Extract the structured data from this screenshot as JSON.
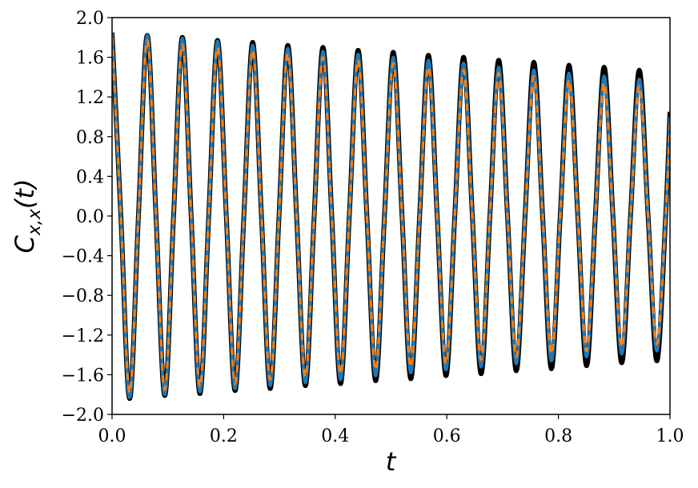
{
  "chart_data": {
    "type": "line",
    "xlabel": "t",
    "ylabel": {
      "base": "C",
      "sub": "x,x",
      "rest": "(t)"
    },
    "x": [
      0,
      0.01575,
      0.0315,
      0.04725,
      0.063,
      0.07875,
      0.0945,
      0.11025,
      0.126,
      0.14175,
      0.1575,
      0.17325,
      0.189,
      0.20475,
      0.2205,
      0.23625,
      0.252,
      0.26775,
      0.2835,
      0.29925,
      0.315,
      0.33075,
      0.3465,
      0.36225,
      0.378,
      0.39375,
      0.4095,
      0.42525,
      0.441,
      0.45675,
      0.4725,
      0.48825,
      0.504,
      0.51975,
      0.5355,
      0.55125,
      0.567,
      0.58275,
      0.5985,
      0.61425,
      0.63,
      0.64575,
      0.6615,
      0.67725,
      0.693,
      0.70875,
      0.7245,
      0.74025,
      0.756,
      0.77175,
      0.7875,
      0.80325,
      0.819,
      0.83475,
      0.8505,
      0.86625,
      0.882,
      0.89775,
      0.9135,
      0.92925,
      0.945,
      0.96075,
      0.9765,
      0.99225,
      1.0
    ],
    "series": [
      {
        "color": "#000000",
        "width": 6,
        "dashed": false,
        "values": [
          1.85,
          0,
          -1.84,
          0,
          1.82,
          0,
          -1.81,
          0,
          1.8,
          0,
          -1.79,
          0,
          1.77,
          0,
          -1.76,
          0,
          1.75,
          0,
          -1.74,
          0,
          1.72,
          0,
          -1.71,
          0,
          1.7,
          0,
          -1.69,
          0,
          1.67,
          0,
          -1.66,
          0,
          1.65,
          0,
          -1.64,
          0,
          1.62,
          0,
          -1.61,
          0,
          1.6,
          0,
          -1.59,
          0,
          1.57,
          0,
          -1.56,
          0,
          1.55,
          0,
          -1.54,
          0,
          1.52,
          0,
          -1.51,
          0,
          1.5,
          0,
          -1.48,
          0,
          1.47,
          0,
          -1.46,
          0,
          1.05
        ]
      },
      {
        "color": "#1f77b4",
        "width": 4,
        "dashed": false,
        "values": [
          1.85,
          0,
          -1.83,
          0,
          1.82,
          0,
          -1.8,
          0,
          1.79,
          0,
          -1.77,
          0,
          1.76,
          0,
          -1.74,
          0,
          1.72,
          0,
          -1.71,
          0,
          1.69,
          0,
          -1.68,
          0,
          1.66,
          0,
          -1.65,
          0,
          1.63,
          0,
          -1.61,
          0,
          1.6,
          0,
          -1.58,
          0,
          1.57,
          0,
          -1.55,
          0,
          1.54,
          0,
          -1.52,
          0,
          1.5,
          0,
          -1.49,
          0,
          1.47,
          0,
          -1.46,
          0,
          1.44,
          0,
          -1.42,
          0,
          1.41,
          0,
          -1.39,
          0,
          1.38,
          0,
          -1.36,
          0,
          1.0
        ]
      },
      {
        "color": "#ff7f0e",
        "width": 3,
        "dashed": true,
        "values": [
          1.8,
          0,
          -1.78,
          0,
          1.77,
          0,
          -1.75,
          0,
          1.73,
          0,
          -1.72,
          0,
          1.7,
          0,
          -1.69,
          0,
          1.67,
          0,
          -1.65,
          0,
          1.64,
          0,
          -1.62,
          0,
          1.6,
          0,
          -1.59,
          0,
          1.57,
          0,
          -1.55,
          0,
          1.54,
          0,
          -1.52,
          0,
          1.5,
          0,
          -1.49,
          0,
          1.47,
          0,
          -1.45,
          0,
          1.44,
          0,
          -1.42,
          0,
          1.41,
          0,
          -1.39,
          0,
          1.37,
          0,
          -1.36,
          0,
          1.34,
          0,
          -1.32,
          0,
          1.31,
          0,
          -1.29,
          0,
          0.95
        ]
      }
    ],
    "xlim": [
      0,
      1.0
    ],
    "ylim": [
      -2.0,
      2.0
    ],
    "xticks": [
      {
        "value": 0,
        "label": "0.0"
      },
      {
        "value": 0.2,
        "label": "0.2"
      },
      {
        "value": 0.4,
        "label": "0.4"
      },
      {
        "value": 0.6,
        "label": "0.6"
      },
      {
        "value": 0.8,
        "label": "0.8"
      },
      {
        "value": 1.0,
        "label": "1.0"
      }
    ],
    "yticks": [
      {
        "value": -2.0,
        "label": "−2.0"
      },
      {
        "value": -1.6,
        "label": "−1.6"
      },
      {
        "value": -1.2,
        "label": "−1.2"
      },
      {
        "value": -0.8,
        "label": "−0.8"
      },
      {
        "value": -0.4,
        "label": "−0.4"
      },
      {
        "value": 0,
        "label": "0.0"
      },
      {
        "value": 0.4,
        "label": "0.4"
      },
      {
        "value": 0.8,
        "label": "0.8"
      },
      {
        "value": 1.2,
        "label": "1.2"
      },
      {
        "value": 1.6,
        "label": "1.6"
      },
      {
        "value": 2.0,
        "label": "2.0"
      }
    ],
    "grid": false
  }
}
